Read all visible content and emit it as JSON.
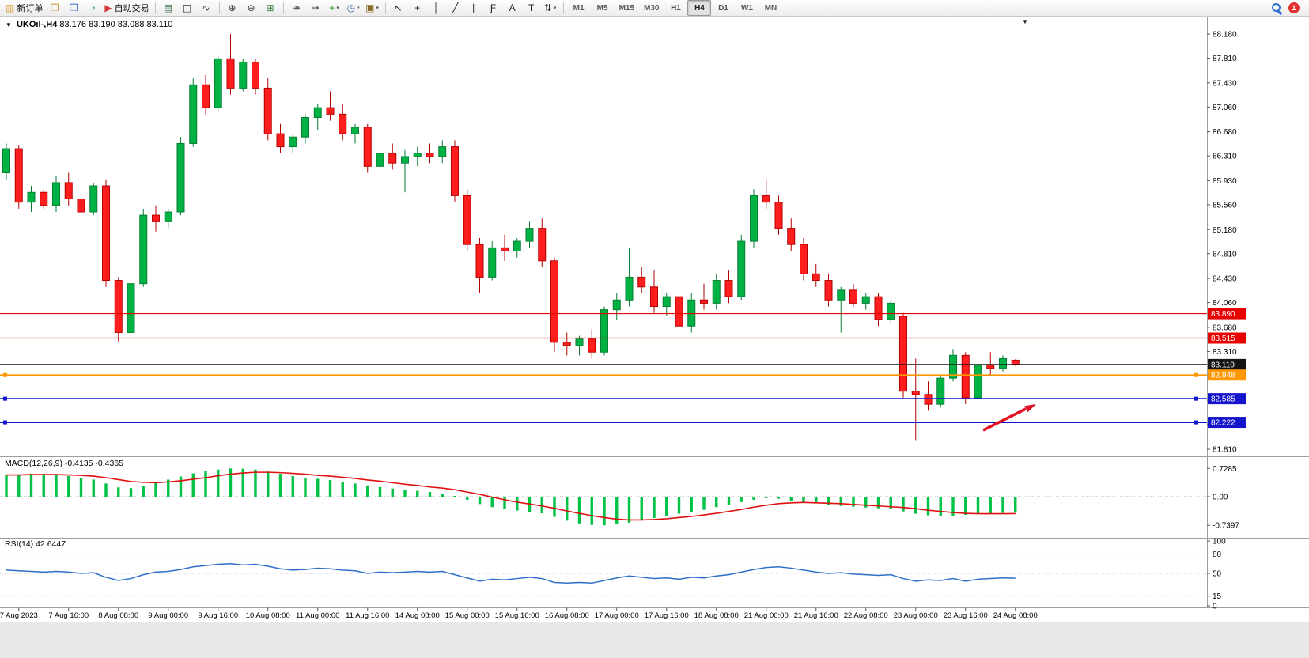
{
  "colors": {
    "bull": "#00b244",
    "bull_stroke": "#067f33",
    "bear": "#ff1d1d",
    "bear_stroke": "#b40000",
    "macd_hist": "#00c244",
    "macd_signal": "#e01010",
    "rsi_line": "#2e6fc9",
    "hline_red": "#e80000",
    "hline_black": "#151515",
    "hline_orange": "#ff9800",
    "hline_blue": "#1414cc",
    "arrow": "#e01122",
    "badge_text": "#ffffff"
  },
  "toolbar": {
    "groups": [
      {
        "name": "trade",
        "items": [
          {
            "name": "new-order-button",
            "label": "新订单",
            "glyph": "▥",
            "glyph_color": "#d8a23a"
          },
          {
            "name": "chart-window-icon",
            "glyph": "❐",
            "glyph_color": "#caa23c"
          },
          {
            "name": "profiles-icon",
            "glyph": "❒",
            "glyph_color": "#4a7fd4"
          },
          {
            "name": "market-watch-icon",
            "glyph": "◔",
            "glyph_color": "#3aa05a"
          },
          {
            "name": "auto-trading-button",
            "label": "自动交易",
            "glyph": "▶",
            "glyph_color": "#d43a3a"
          }
        ]
      },
      {
        "name": "chart-types",
        "items": [
          {
            "name": "bar-chart-icon",
            "glyph": "▤",
            "glyph_color": "#3c6e47"
          },
          {
            "name": "candlestick-chart-icon",
            "glyph": "◫",
            "glyph_color": "#333333"
          },
          {
            "name": "line-chart-icon",
            "glyph": "∿",
            "glyph_color": "#333333"
          }
        ]
      },
      {
        "name": "zoom",
        "items": [
          {
            "name": "zoom-in-icon",
            "glyph": "⊕",
            "glyph_color": "#444444"
          },
          {
            "name": "zoom-out-icon",
            "glyph": "⊖",
            "glyph_color": "#444444"
          },
          {
            "name": "tile-windows-icon",
            "glyph": "⊞",
            "glyph_color": "#3a7a3a"
          }
        ]
      },
      {
        "name": "chart-tools",
        "items": [
          {
            "name": "auto-scroll-icon",
            "glyph": "↠",
            "glyph_color": "#444444"
          },
          {
            "name": "chart-shift-icon",
            "glyph": "↦",
            "glyph_color": "#444444"
          },
          {
            "name": "indicators-add-icon",
            "glyph": "+",
            "glyph_color": "#1a9a1a",
            "caret": true
          },
          {
            "name": "periods-clock-icon",
            "glyph": "◷",
            "glyph_color": "#3a5fa0",
            "caret": true
          },
          {
            "name": "templates-icon",
            "glyph": "▣",
            "glyph_color": "#8a6a2a",
            "caret": true
          }
        ]
      },
      {
        "name": "line-studies",
        "items": [
          {
            "name": "cursor-icon",
            "glyph": "↖",
            "glyph_color": "#222222"
          },
          {
            "name": "crosshair-icon",
            "glyph": "+",
            "glyph_color": "#222222"
          },
          {
            "name": "vertical-line-icon",
            "glyph": "│",
            "glyph_color": "#222222"
          },
          {
            "name": "trendline-icon",
            "glyph": "╱",
            "glyph_color": "#222222"
          },
          {
            "name": "channel-icon",
            "glyph": "∥",
            "glyph_color": "#222222"
          },
          {
            "name": "fibonacci-icon",
            "glyph": "Ƒ",
            "glyph_color": "#222222"
          },
          {
            "name": "text-icon",
            "glyph": "A",
            "glyph_color": "#222222"
          },
          {
            "name": "text-label-icon",
            "glyph": "T",
            "glyph_color": "#222222"
          },
          {
            "name": "arrows-icon",
            "glyph": "⇅",
            "glyph_color": "#222222",
            "caret": true
          }
        ]
      },
      {
        "name": "timeframes",
        "items": [
          {
            "name": "timeframe-m1",
            "label": "M1",
            "tf": true
          },
          {
            "name": "timeframe-m5",
            "label": "M5",
            "tf": true
          },
          {
            "name": "timeframe-m15",
            "label": "M15",
            "tf": true
          },
          {
            "name": "timeframe-m30",
            "label": "M30",
            "tf": true
          },
          {
            "name": "timeframe-h1",
            "label": "H1",
            "tf": true
          },
          {
            "name": "timeframe-h4",
            "label": "H4",
            "tf": true,
            "active": true
          },
          {
            "name": "timeframe-d1",
            "label": "D1",
            "tf": true
          },
          {
            "name": "timeframe-w1",
            "label": "W1",
            "tf": true
          },
          {
            "name": "timeframe-mn",
            "label": "MN",
            "tf": true
          }
        ]
      },
      {
        "name": "right",
        "right": true,
        "items": [
          {
            "name": "search-icon",
            "kind": "search"
          },
          {
            "name": "notification-badge",
            "kind": "badge",
            "label": "1"
          }
        ]
      }
    ]
  },
  "chart": {
    "symbol_period": "UKOil-,H4",
    "ohlc_text": "83.176 83.190 83.088 83.110",
    "collapse_glyph": "▼",
    "menu_arrow_glyph": "▼"
  },
  "price_axis": {
    "labels": [
      "88.180",
      "87.810",
      "87.430",
      "87.060",
      "86.680",
      "86.310",
      "85.930",
      "85.560",
      "85.180",
      "84.810",
      "84.430",
      "84.060",
      "83.680",
      "83.310",
      "82.930",
      "82.560",
      "82.190",
      "81.810"
    ]
  },
  "hlines": [
    {
      "label": "83.890",
      "price": 83.89,
      "color_key": "hline_red",
      "width": 1.2,
      "handles": false
    },
    {
      "label": "83.515",
      "price": 83.515,
      "color_key": "hline_red",
      "width": 1.2,
      "handles": false
    },
    {
      "label": "83.110",
      "price": 83.11,
      "color_key": "hline_black",
      "width": 1.2,
      "handles": false
    },
    {
      "label": "82.948",
      "price": 82.948,
      "color_key": "hline_orange",
      "width": 1.8,
      "handles": true
    },
    {
      "label": "82.585",
      "price": 82.585,
      "color_key": "hline_blue",
      "width": 1.8,
      "handles": true
    },
    {
      "label": "82.222",
      "price": 82.222,
      "color_key": "hline_blue",
      "width": 1.8,
      "handles": true
    }
  ],
  "chart_data": {
    "type": "candlestick",
    "symbol": "UKOil-",
    "timeframe": "H4",
    "ohlc_current": {
      "open": 83.176,
      "high": 83.19,
      "low": 83.088,
      "close": 83.11
    },
    "price_range": [
      81.81,
      88.18
    ],
    "time_labels": [
      "7 Aug 2023",
      "7 Aug 16:00",
      "8 Aug 08:00",
      "9 Aug 00:00",
      "9 Aug 16:00",
      "10 Aug 08:00",
      "11 Aug 00:00",
      "11 Aug 16:00",
      "14 Aug 08:00",
      "15 Aug 00:00",
      "15 Aug 16:00",
      "16 Aug 08:00",
      "17 Aug 00:00",
      "17 Aug 16:00",
      "18 Aug 08:00",
      "21 Aug 00:00",
      "21 Aug 16:00",
      "22 Aug 08:00",
      "23 Aug 00:00",
      "23 Aug 16:00",
      "24 Aug 08:00"
    ],
    "candles": [
      [
        86.05,
        86.5,
        85.95,
        86.42
      ],
      [
        86.42,
        86.48,
        85.5,
        85.6
      ],
      [
        85.6,
        85.85,
        85.45,
        85.75
      ],
      [
        85.75,
        85.8,
        85.5,
        85.55
      ],
      [
        85.55,
        86.0,
        85.45,
        85.9
      ],
      [
        85.9,
        86.05,
        85.55,
        85.65
      ],
      [
        85.65,
        85.8,
        85.35,
        85.45
      ],
      [
        85.45,
        85.9,
        85.4,
        85.85
      ],
      [
        85.85,
        85.95,
        84.3,
        84.4
      ],
      [
        84.4,
        84.45,
        83.45,
        83.6
      ],
      [
        83.6,
        84.45,
        83.4,
        84.35
      ],
      [
        84.35,
        85.5,
        84.3,
        85.4
      ],
      [
        85.4,
        85.55,
        85.15,
        85.3
      ],
      [
        85.3,
        85.5,
        85.2,
        85.45
      ],
      [
        85.45,
        86.6,
        85.4,
        86.5
      ],
      [
        86.5,
        87.5,
        86.45,
        87.4
      ],
      [
        87.4,
        87.55,
        86.95,
        87.05
      ],
      [
        87.05,
        87.85,
        87.0,
        87.8
      ],
      [
        87.8,
        88.18,
        87.25,
        87.35
      ],
      [
        87.35,
        87.8,
        87.3,
        87.75
      ],
      [
        87.75,
        87.8,
        87.25,
        87.35
      ],
      [
        87.35,
        87.5,
        86.55,
        86.65
      ],
      [
        86.65,
        86.8,
        86.35,
        86.45
      ],
      [
        86.45,
        86.65,
        86.35,
        86.6
      ],
      [
        86.6,
        86.95,
        86.5,
        86.9
      ],
      [
        86.9,
        87.1,
        86.7,
        87.05
      ],
      [
        87.05,
        87.3,
        86.85,
        86.95
      ],
      [
        86.95,
        87.1,
        86.55,
        86.65
      ],
      [
        86.65,
        86.8,
        86.5,
        86.75
      ],
      [
        86.75,
        86.8,
        86.05,
        86.15
      ],
      [
        86.15,
        86.45,
        85.9,
        86.35
      ],
      [
        86.35,
        86.5,
        86.1,
        86.2
      ],
      [
        86.2,
        86.4,
        85.75,
        86.3
      ],
      [
        86.3,
        86.45,
        86.15,
        86.35
      ],
      [
        86.35,
        86.5,
        86.2,
        86.3
      ],
      [
        86.3,
        86.55,
        86.2,
        86.45
      ],
      [
        86.45,
        86.55,
        85.6,
        85.7
      ],
      [
        85.7,
        85.8,
        84.85,
        84.95
      ],
      [
        84.95,
        85.05,
        84.2,
        84.45
      ],
      [
        84.45,
        85.0,
        84.4,
        84.9
      ],
      [
        84.9,
        85.1,
        84.7,
        84.85
      ],
      [
        84.85,
        85.05,
        84.75,
        85.0
      ],
      [
        85.0,
        85.3,
        84.9,
        85.2
      ],
      [
        85.2,
        85.35,
        84.6,
        84.7
      ],
      [
        84.7,
        84.75,
        83.3,
        83.45
      ],
      [
        83.45,
        83.6,
        83.25,
        83.4
      ],
      [
        83.4,
        83.55,
        83.25,
        83.5
      ],
      [
        83.5,
        83.65,
        83.2,
        83.3
      ],
      [
        83.3,
        84.0,
        83.25,
        83.95
      ],
      [
        83.95,
        84.2,
        83.8,
        84.1
      ],
      [
        84.1,
        84.9,
        84.0,
        84.45
      ],
      [
        84.45,
        84.6,
        84.2,
        84.3
      ],
      [
        84.3,
        84.55,
        83.9,
        84.0
      ],
      [
        84.0,
        84.2,
        83.85,
        84.15
      ],
      [
        84.15,
        84.25,
        83.55,
        83.7
      ],
      [
        83.7,
        84.2,
        83.6,
        84.1
      ],
      [
        84.1,
        84.35,
        83.95,
        84.05
      ],
      [
        84.05,
        84.5,
        83.95,
        84.4
      ],
      [
        84.4,
        84.55,
        84.05,
        84.15
      ],
      [
        84.15,
        85.1,
        84.1,
        85.0
      ],
      [
        85.0,
        85.8,
        84.9,
        85.7
      ],
      [
        85.7,
        85.95,
        85.5,
        85.6
      ],
      [
        85.6,
        85.7,
        85.1,
        85.2
      ],
      [
        85.2,
        85.35,
        84.85,
        84.95
      ],
      [
        84.95,
        85.05,
        84.4,
        84.5
      ],
      [
        84.5,
        84.65,
        84.3,
        84.4
      ],
      [
        84.4,
        84.5,
        84.0,
        84.1
      ],
      [
        84.1,
        84.3,
        83.6,
        84.25
      ],
      [
        84.25,
        84.35,
        84.0,
        84.05
      ],
      [
        84.05,
        84.2,
        83.95,
        84.15
      ],
      [
        84.15,
        84.2,
        83.7,
        83.8
      ],
      [
        83.8,
        84.1,
        83.75,
        84.05
      ],
      [
        83.85,
        83.9,
        82.6,
        82.7
      ],
      [
        82.7,
        83.2,
        81.95,
        82.65
      ],
      [
        82.65,
        82.85,
        82.4,
        82.5
      ],
      [
        82.5,
        82.95,
        82.45,
        82.9
      ],
      [
        82.9,
        83.35,
        82.85,
        83.25
      ],
      [
        83.25,
        83.3,
        82.5,
        82.6
      ],
      [
        82.6,
        83.2,
        81.9,
        83.1
      ],
      [
        83.1,
        83.3,
        82.95,
        83.05
      ],
      [
        83.05,
        83.25,
        83.0,
        83.2
      ],
      [
        83.176,
        83.19,
        83.088,
        83.11
      ]
    ],
    "macd": {
      "title": "MACD(12,26,9)",
      "values_text": "-0.4135 -0.4365",
      "scale": [
        "0.7285",
        "0.00",
        "-0.7397"
      ],
      "scale_values": [
        0.7285,
        0,
        -0.7397
      ],
      "hist": [
        0.55,
        0.57,
        0.59,
        0.58,
        0.56,
        0.53,
        0.49,
        0.44,
        0.34,
        0.24,
        0.22,
        0.28,
        0.36,
        0.44,
        0.52,
        0.6,
        0.66,
        0.7,
        0.728,
        0.72,
        0.7,
        0.65,
        0.59,
        0.53,
        0.49,
        0.46,
        0.43,
        0.39,
        0.34,
        0.29,
        0.25,
        0.21,
        0.18,
        0.15,
        0.12,
        0.08,
        0.02,
        -0.08,
        -0.19,
        -0.27,
        -0.32,
        -0.36,
        -0.39,
        -0.43,
        -0.52,
        -0.62,
        -0.69,
        -0.73,
        -0.739,
        -0.71,
        -0.67,
        -0.61,
        -0.55,
        -0.49,
        -0.44,
        -0.39,
        -0.34,
        -0.27,
        -0.21,
        -0.14,
        -0.08,
        -0.04,
        -0.05,
        -0.1,
        -0.14,
        -0.17,
        -0.21,
        -0.24,
        -0.26,
        -0.28,
        -0.3,
        -0.32,
        -0.38,
        -0.44,
        -0.48,
        -0.5,
        -0.49,
        -0.47,
        -0.45,
        -0.43,
        -0.42,
        -0.4135
      ],
      "signal": [
        0.56,
        0.56,
        0.57,
        0.57,
        0.57,
        0.56,
        0.55,
        0.53,
        0.49,
        0.44,
        0.39,
        0.37,
        0.36,
        0.38,
        0.41,
        0.45,
        0.49,
        0.54,
        0.58,
        0.61,
        0.63,
        0.63,
        0.62,
        0.6,
        0.58,
        0.55,
        0.53,
        0.5,
        0.47,
        0.43,
        0.4,
        0.36,
        0.32,
        0.29,
        0.25,
        0.22,
        0.18,
        0.12,
        0.06,
        -0.01,
        -0.08,
        -0.14,
        -0.19,
        -0.24,
        -0.3,
        -0.37,
        -0.43,
        -0.49,
        -0.54,
        -0.58,
        -0.6,
        -0.6,
        -0.59,
        -0.57,
        -0.54,
        -0.51,
        -0.47,
        -0.43,
        -0.38,
        -0.33,
        -0.27,
        -0.22,
        -0.18,
        -0.16,
        -0.15,
        -0.16,
        -0.17,
        -0.18,
        -0.2,
        -0.22,
        -0.24,
        -0.26,
        -0.28,
        -0.31,
        -0.35,
        -0.38,
        -0.41,
        -0.43,
        -0.44,
        -0.44,
        -0.44,
        -0.4365
      ]
    },
    "rsi": {
      "title": "RSI(14)",
      "value_text": "42.6447",
      "scale_labels": [
        "100",
        "80",
        "50",
        "15",
        "0"
      ],
      "scale_values": [
        100,
        80,
        50,
        15,
        0
      ],
      "levels": [
        80,
        50,
        15
      ],
      "values": [
        55,
        54,
        53,
        52,
        53,
        52,
        50,
        51,
        44,
        39,
        42,
        48,
        52,
        53,
        56,
        60,
        62,
        64,
        65,
        63,
        64,
        61,
        57,
        55,
        56,
        58,
        57,
        55,
        54,
        50,
        52,
        51,
        52,
        53,
        52,
        53,
        48,
        43,
        38,
        41,
        40,
        42,
        44,
        42,
        36,
        35,
        36,
        35,
        39,
        43,
        46,
        44,
        42,
        43,
        41,
        44,
        43,
        46,
        48,
        52,
        56,
        59,
        60,
        58,
        55,
        52,
        50,
        51,
        49,
        48,
        47,
        48,
        42,
        38,
        40,
        39,
        42,
        38,
        41,
        42,
        43,
        42.6
      ]
    }
  }
}
